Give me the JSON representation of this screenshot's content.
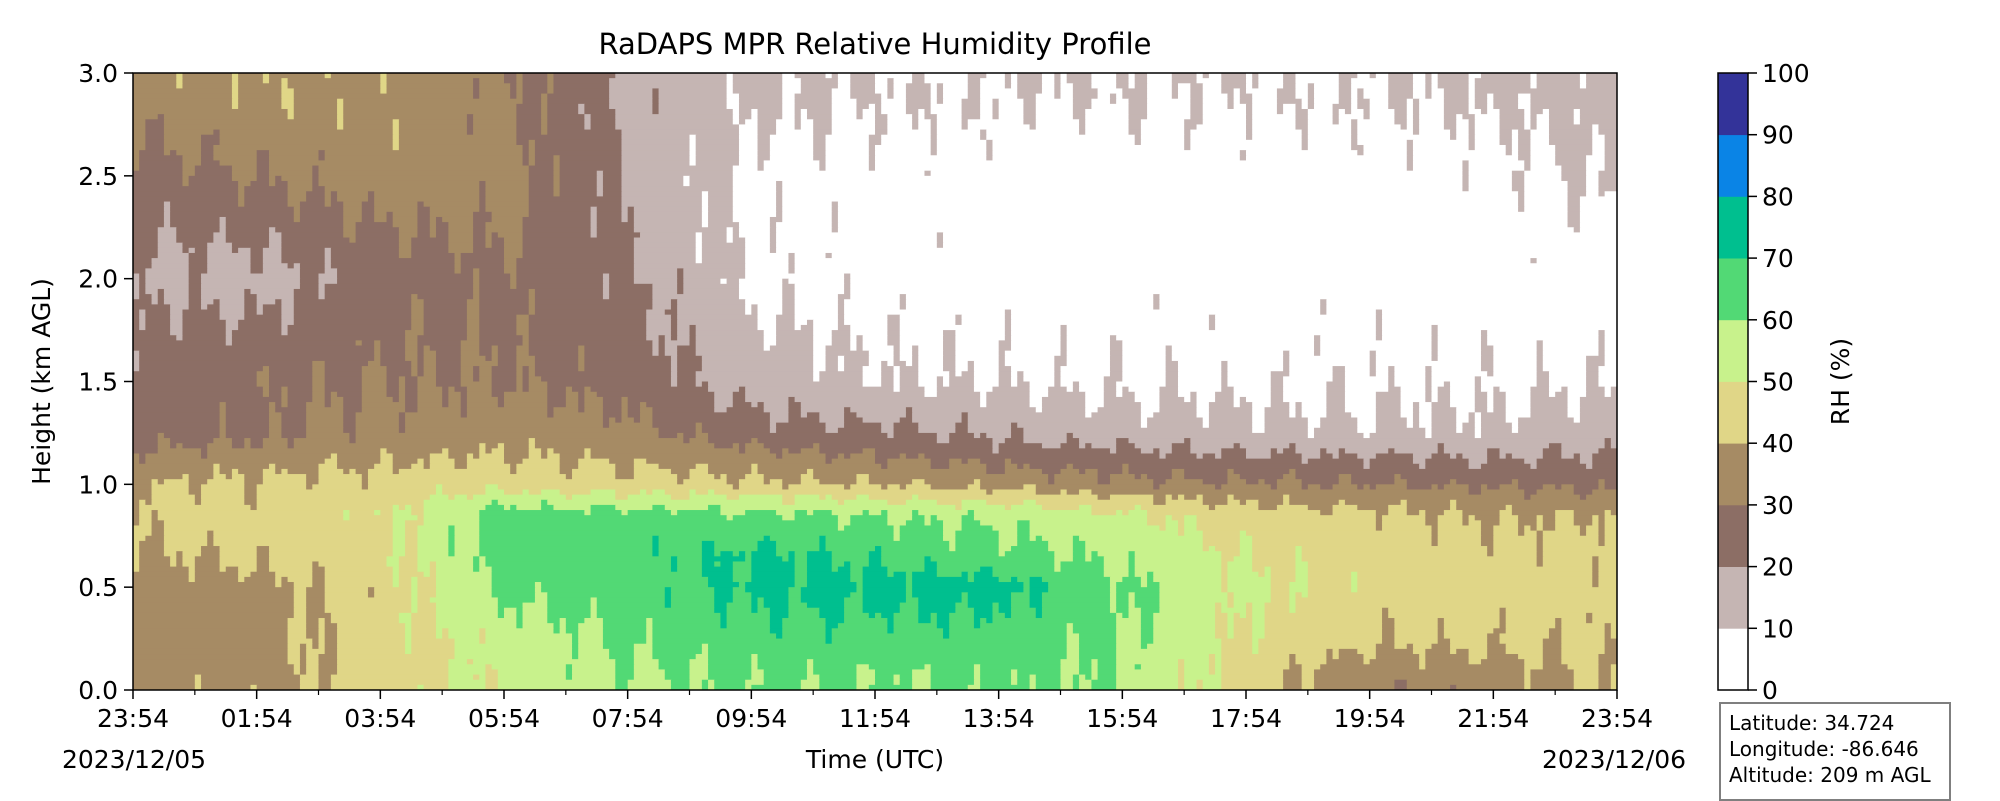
{
  "chart_data": {
    "type": "filled-contour",
    "title": "RaDAPS MPR Relative Humidity Profile",
    "xlabel": "Time (UTC)",
    "ylabel": "Height (km AGL)",
    "ylim": [
      0,
      3.0
    ],
    "y_ticks": [
      "0.0",
      "0.5",
      "1.0",
      "1.5",
      "2.0",
      "2.5",
      "3.0"
    ],
    "x_ticks": [
      "23:54",
      "01:54",
      "03:54",
      "05:54",
      "07:54",
      "09:54",
      "11:54",
      "13:54",
      "15:54",
      "17:54",
      "19:54",
      "21:54",
      "23:54"
    ],
    "start_date": "2023/12/05",
    "end_date": "2023/12/06",
    "colorbar": {
      "label": "RH (%)",
      "ticks": [
        "0",
        "10",
        "20",
        "30",
        "40",
        "50",
        "60",
        "70",
        "80",
        "90",
        "100"
      ],
      "levels": [
        0,
        10,
        20,
        30,
        40,
        50,
        60,
        70,
        80,
        90,
        100
      ],
      "colors": [
        "#ffffff",
        "#c5b5b3",
        "#8c6e65",
        "#a68b64",
        "#e0d687",
        "#c8f28c",
        "#52d975",
        "#00bf8f",
        "#0a84e6",
        "#333399"
      ]
    },
    "rh_field_approx": {
      "x_hours_from_start": [
        0,
        2,
        4,
        6,
        8,
        10,
        12,
        14,
        16,
        18,
        20,
        22,
        24
      ],
      "heights_km": [
        0.05,
        0.25,
        0.5,
        0.65,
        0.85,
        1.0,
        1.25,
        1.5,
        2.0,
        2.5,
        2.9
      ],
      "rh_percent": [
        [
          35,
          36,
          45,
          52,
          58,
          62,
          60,
          62,
          60,
          45,
          32,
          34,
          42
        ],
        [
          35,
          36,
          45,
          55,
          62,
          66,
          66,
          66,
          60,
          48,
          42,
          42,
          42
        ],
        [
          35,
          36,
          45,
          62,
          64,
          72,
          74,
          74,
          62,
          52,
          45,
          45,
          44
        ],
        [
          38,
          42,
          45,
          65,
          66,
          72,
          68,
          64,
          58,
          50,
          45,
          44,
          43
        ],
        [
          42,
          44,
          48,
          65,
          64,
          62,
          60,
          58,
          52,
          45,
          42,
          40,
          40
        ],
        [
          40,
          42,
          44,
          46,
          44,
          42,
          40,
          36,
          33,
          31,
          30,
          28,
          28
        ],
        [
          25,
          28,
          33,
          36,
          33,
          25,
          22,
          18,
          15,
          13,
          12,
          12,
          15
        ],
        [
          25,
          28,
          30,
          30,
          26,
          15,
          10,
          9,
          8,
          8,
          8,
          8,
          9
        ],
        [
          18,
          16,
          25,
          28,
          22,
          8,
          6,
          5,
          5,
          5,
          5,
          5,
          5
        ],
        [
          25,
          30,
          35,
          35,
          18,
          8,
          6,
          5,
          5,
          5,
          5,
          6,
          12
        ],
        [
          35,
          38,
          38,
          32,
          18,
          12,
          10,
          10,
          10,
          9,
          10,
          12,
          14
        ]
      ]
    }
  },
  "info": {
    "latitude": "Latitude: 34.724",
    "longitude": "Longitude: -86.646",
    "altitude": "Altitude: 209 m AGL"
  }
}
